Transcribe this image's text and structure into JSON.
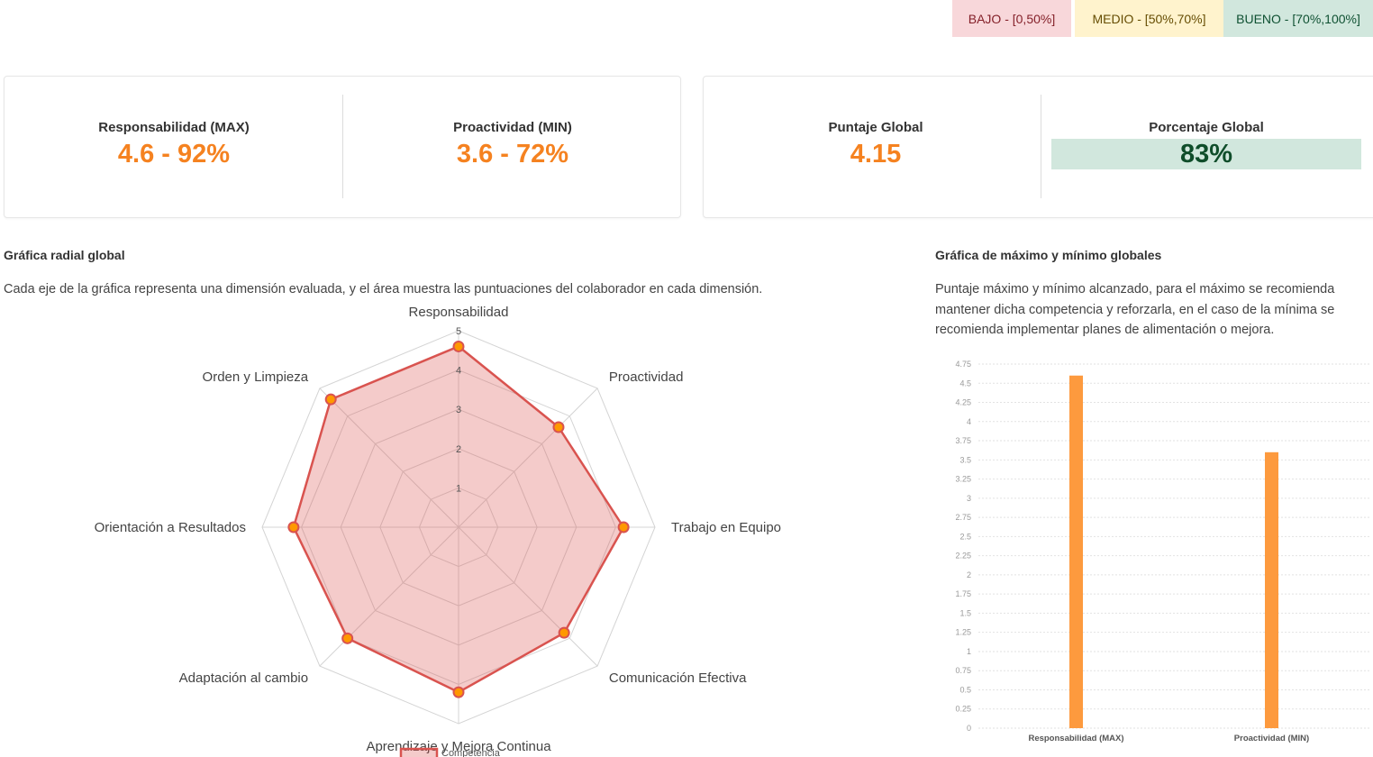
{
  "legend": {
    "bajo": "BAJO - [0,50%]",
    "medio": "MEDIO - [50%,70%]",
    "bueno": "BUENO - [70%,100%]",
    "colors": {
      "bajo": "#f8d7da",
      "medio": "#fff3cd",
      "bueno": "#d1e7dd"
    }
  },
  "stats": {
    "max_label": "Responsabilidad (MAX)",
    "max_value": "4.6 - 92%",
    "min_label": "Proactividad (MIN)",
    "min_value": "3.6 - 72%",
    "global_label": "Puntaje Global",
    "global_value": "4.15",
    "pct_label": "Porcentaje Global",
    "pct_value": "83%"
  },
  "radar_section": {
    "title": "Gráfica radial global",
    "description": "Cada eje de la gráfica representa una dimensión evaluada, y el área muestra las puntuaciones del colaborador en cada dimensión."
  },
  "bar_section": {
    "title": "Gráfica de máximo y mínimo globales",
    "description_lines": [
      "Puntaje máximo y mínimo alcanzado, para el máximo se recomienda",
      "mantener dicha competencia y reforzarla, en el caso de la mínima se",
      "recomienda implementar planes de alimentación o mejora."
    ]
  },
  "accent_color": "#f58220",
  "chart_data": [
    {
      "type": "radar",
      "categories": [
        "Responsabilidad",
        "Proactividad",
        "Trabajo en Equipo",
        "Comunicación Efectiva",
        "Aprendizaje y Mejora Continua",
        "Adaptación al cambio",
        "Orientación a Resultados",
        "Orden y Limpieza"
      ],
      "series": [
        {
          "name": "Competencia",
          "values": [
            4.6,
            3.6,
            4.2,
            3.8,
            4.2,
            4.0,
            4.2,
            4.6
          ],
          "color": "#d9534f",
          "fill": "rgba(217,83,79,0.3)",
          "point_color": "#ff9800"
        }
      ],
      "rlim": [
        0,
        5
      ],
      "ticks": [
        "1",
        "2",
        "3",
        "4",
        "5"
      ],
      "legend": "bottom"
    },
    {
      "type": "bar",
      "categories": [
        "Responsabilidad (MAX)",
        "Proactividad (MIN)"
      ],
      "values": [
        4.6,
        3.6
      ],
      "ylim": [
        0,
        4.75
      ],
      "yticks": [
        "0",
        "0.25",
        "0.5",
        "0.75",
        "1",
        "1.25",
        "1.5",
        "1.75",
        "2",
        "2.25",
        "2.5",
        "2.75",
        "3",
        "3.25",
        "3.5",
        "3.75",
        "4",
        "4.25",
        "4.5",
        "4.75"
      ],
      "color": "#fd9a3e",
      "grid": true
    }
  ]
}
